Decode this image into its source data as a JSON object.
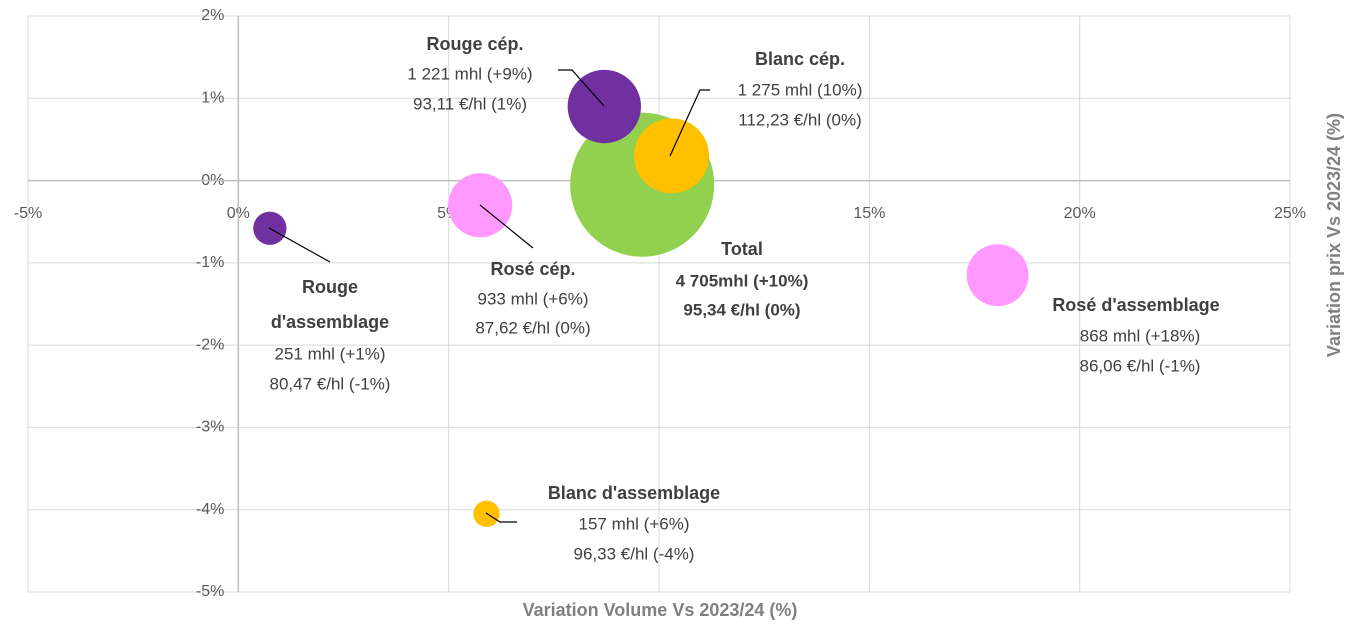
{
  "chart_data": {
    "type": "bubble",
    "x_label": "Variation Volume Vs 2023/24 (%)",
    "y_label": "Variation prix Vs 2023/24 (%)",
    "xlim": [
      -5,
      25
    ],
    "xticks": [
      {
        "value": -5,
        "label": "-5%"
      },
      {
        "value": 0,
        "label": "0%"
      },
      {
        "value": 5,
        "label": "5%"
      },
      {
        "value": 10,
        "label": "10%"
      },
      {
        "value": 15,
        "label": "15%"
      },
      {
        "value": 20,
        "label": "20%"
      },
      {
        "value": 25,
        "label": "25%"
      }
    ],
    "ylim": [
      -5,
      2
    ],
    "yticks": [
      {
        "value": 2,
        "label": "2%"
      },
      {
        "value": 1,
        "label": "1%"
      },
      {
        "value": 0,
        "label": "0%"
      },
      {
        "value": -1,
        "label": "-1%"
      },
      {
        "value": -2,
        "label": "-2%"
      },
      {
        "value": -3,
        "label": "-3%"
      },
      {
        "value": -4,
        "label": "-4%"
      },
      {
        "value": -5,
        "label": "-5%"
      }
    ],
    "grid": true,
    "series": [
      {
        "name": "Total",
        "color": "#92d050",
        "label_color": "#262626",
        "x": [
          9.6
        ],
        "values": [
          -0.05
        ],
        "sizes": [
          4705
        ],
        "volume_label": "4 705mhl (+10%)",
        "price_label": "95,34 €/hl (0%)"
      },
      {
        "name": "Rouge cép.",
        "color": "#7030a0",
        "x": [
          8.7
        ],
        "values": [
          0.9
        ],
        "sizes": [
          1221
        ],
        "volume_label": "1 221 mhl (+9%)",
        "price_label": "93,11 €/hl (1%)"
      },
      {
        "name": "Blanc cép.",
        "color": "#ffc000",
        "x": [
          10.3
        ],
        "values": [
          0.3
        ],
        "sizes": [
          1275
        ],
        "volume_label": "1 275 mhl (10%)",
        "price_label": "112,23 €/hl (0%)"
      },
      {
        "name": "Rosé cép.",
        "color": "#ff99ff",
        "x": [
          5.75
        ],
        "values": [
          -0.3
        ],
        "sizes": [
          933
        ],
        "volume_label": "933 mhl (+6%)",
        "price_label": "87,62 €/hl (0%)"
      },
      {
        "name": "Rosé d'assemblage",
        "color": "#ff99ff",
        "x": [
          18.05
        ],
        "values": [
          -1.15
        ],
        "sizes": [
          868
        ],
        "volume_label": "868 mhl (+18%)",
        "price_label": "86,06 €/hl (-1%)"
      },
      {
        "name": "Rouge d'assemblage",
        "color": "#7030a0",
        "x": [
          0.75
        ],
        "values": [
          -0.58
        ],
        "sizes": [
          251
        ],
        "volume_label": "251 mhl (+1%)",
        "price_label": "80,47 €/hl (-1%)"
      },
      {
        "name": "Blanc d'assemblage",
        "color": "#ffc000",
        "x": [
          5.9
        ],
        "values": [
          -4.05
        ],
        "sizes": [
          157
        ],
        "volume_label": "157 mhl (+6%)",
        "price_label": "96,33 €/hl (-4%)"
      }
    ]
  }
}
